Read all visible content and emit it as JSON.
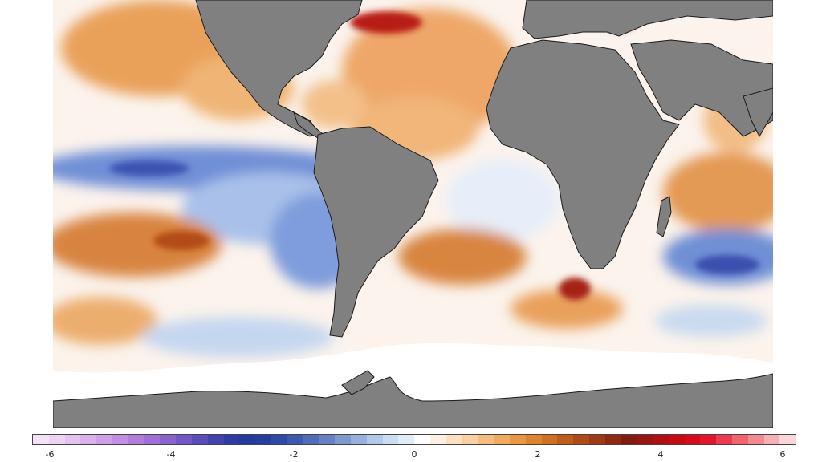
{
  "map": {
    "land_color": "#808080",
    "background_color": "#ffffff"
  },
  "colorbar": {
    "min": -6,
    "max": 6,
    "tick_labels": [
      "-6",
      "-4",
      "-2",
      "0",
      "2",
      "4",
      "6"
    ],
    "colors": [
      "#f5e1f5",
      "#efd3f2",
      "#e4c2ef",
      "#d9b0ec",
      "#cfa0e9",
      "#c28fe4",
      "#b27ddd",
      "#9f6ed8",
      "#8b63d1",
      "#7457c6",
      "#5a4bbb",
      "#4141b0",
      "#2d3aa7",
      "#22399f",
      "#223f9f",
      "#2a4ba6",
      "#3a5ab0",
      "#4e6dbb",
      "#6682c6",
      "#7e98d2",
      "#98b0de",
      "#b2c8e8",
      "#cadcf1",
      "#e2ecf8",
      "#ffffff",
      "#fdf0e0",
      "#fbe1c0",
      "#f9d09e",
      "#f6bd7c",
      "#f2aa5c",
      "#eb9640",
      "#e0822c",
      "#d36f20",
      "#c35c19",
      "#b14b15",
      "#9f3a12",
      "#8f2a10",
      "#821c0f",
      "#9a150f",
      "#b20f10",
      "#c80a12",
      "#dc0a18",
      "#e61428",
      "#ec3b4e",
      "#f0636f",
      "#f38a91",
      "#f6b0b3",
      "#f9d6d7"
    ]
  }
}
